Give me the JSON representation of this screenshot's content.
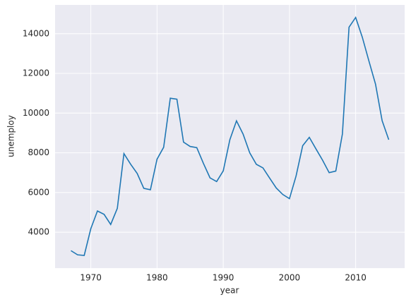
{
  "chart_data": {
    "type": "line",
    "x_label": "year",
    "y_label": "unemploy",
    "x": [
      1967,
      1968,
      1969,
      1970,
      1971,
      1972,
      1973,
      1974,
      1975,
      1976,
      1977,
      1978,
      1979,
      1980,
      1981,
      1982,
      1983,
      1984,
      1985,
      1986,
      1987,
      1988,
      1989,
      1990,
      1991,
      1992,
      1993,
      1994,
      1995,
      1996,
      1997,
      1998,
      1999,
      2000,
      2001,
      2002,
      2003,
      2004,
      2005,
      2006,
      2007,
      2008,
      2009,
      2010,
      2011,
      2012,
      2013,
      2014,
      2015
    ],
    "series": [
      {
        "color": "#1f77b4",
        "values": [
          3070,
          2860,
          2830,
          4180,
          5070,
          4900,
          4390,
          5200,
          7960,
          7430,
          6960,
          6210,
          6140,
          7680,
          8280,
          10750,
          10700,
          8540,
          8320,
          8260,
          7470,
          6740,
          6550,
          7090,
          8660,
          9610,
          8940,
          8000,
          7420,
          7240,
          6730,
          6230,
          5900,
          5690,
          6830,
          8360,
          8780,
          8200,
          7630,
          7000,
          7080,
          8950,
          14330,
          14820,
          13830,
          12630,
          11460,
          9620,
          8660
        ]
      }
    ],
    "xlim": [
      1964.6,
      2017.4
    ],
    "xticks": [
      1970,
      1980,
      1990,
      2000,
      2010
    ],
    "ylim": [
      2190,
      15450
    ],
    "yticks": [
      4000,
      6000,
      8000,
      10000,
      12000,
      14000
    ],
    "grid": true
  }
}
